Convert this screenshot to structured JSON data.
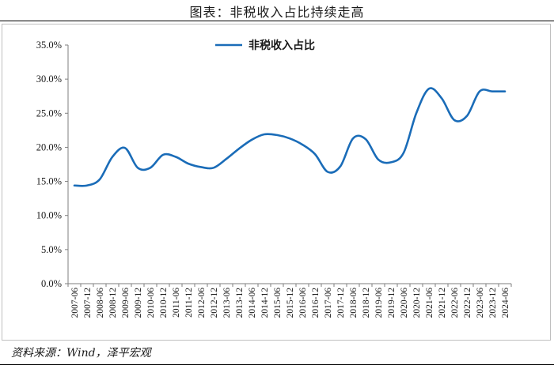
{
  "header": {
    "title": "图表：非税收入占比持续走高"
  },
  "footer": {
    "source": "资料来源：Wind，泽平宏观"
  },
  "colors": {
    "line": "#1a6cb8",
    "axis": "#7f7f7f",
    "frame": "#bfbfbf"
  },
  "chart_data": {
    "type": "line",
    "title": "",
    "xlabel": "",
    "ylabel": "",
    "ylim": [
      0,
      35
    ],
    "y_ticks": [
      "0.0%",
      "5.0%",
      "10.0%",
      "15.0%",
      "20.0%",
      "25.0%",
      "30.0%",
      "35.0%"
    ],
    "legend_position": "top-center",
    "grid": false,
    "categories": [
      "2007-06",
      "2007-12",
      "2008-06",
      "2008-12",
      "2009-06",
      "2009-12",
      "2010-06",
      "2010-12",
      "2011-06",
      "2011-12",
      "2012-06",
      "2012-12",
      "2013-06",
      "2013-12",
      "2014-06",
      "2014-12",
      "2015-06",
      "2015-12",
      "2016-06",
      "2016-12",
      "2017-06",
      "2017-12",
      "2018-06",
      "2018-12",
      "2019-06",
      "2019-12",
      "2020-06",
      "2020-12",
      "2021-06",
      "2021-12",
      "2022-06",
      "2022-12",
      "2023-06",
      "2023-12",
      "2024-06"
    ],
    "series": [
      {
        "name": "非税收入占比",
        "values": [
          14.4,
          14.4,
          15.3,
          18.6,
          19.9,
          17.0,
          17.0,
          18.9,
          18.6,
          17.6,
          17.1,
          17.0,
          18.3,
          19.8,
          21.1,
          21.9,
          21.8,
          21.3,
          20.4,
          19.0,
          16.4,
          17.2,
          21.3,
          21.2,
          18.2,
          17.8,
          19.2,
          25.0,
          28.6,
          27.2,
          24.0,
          24.6,
          28.2,
          28.2,
          28.2
        ]
      }
    ]
  }
}
